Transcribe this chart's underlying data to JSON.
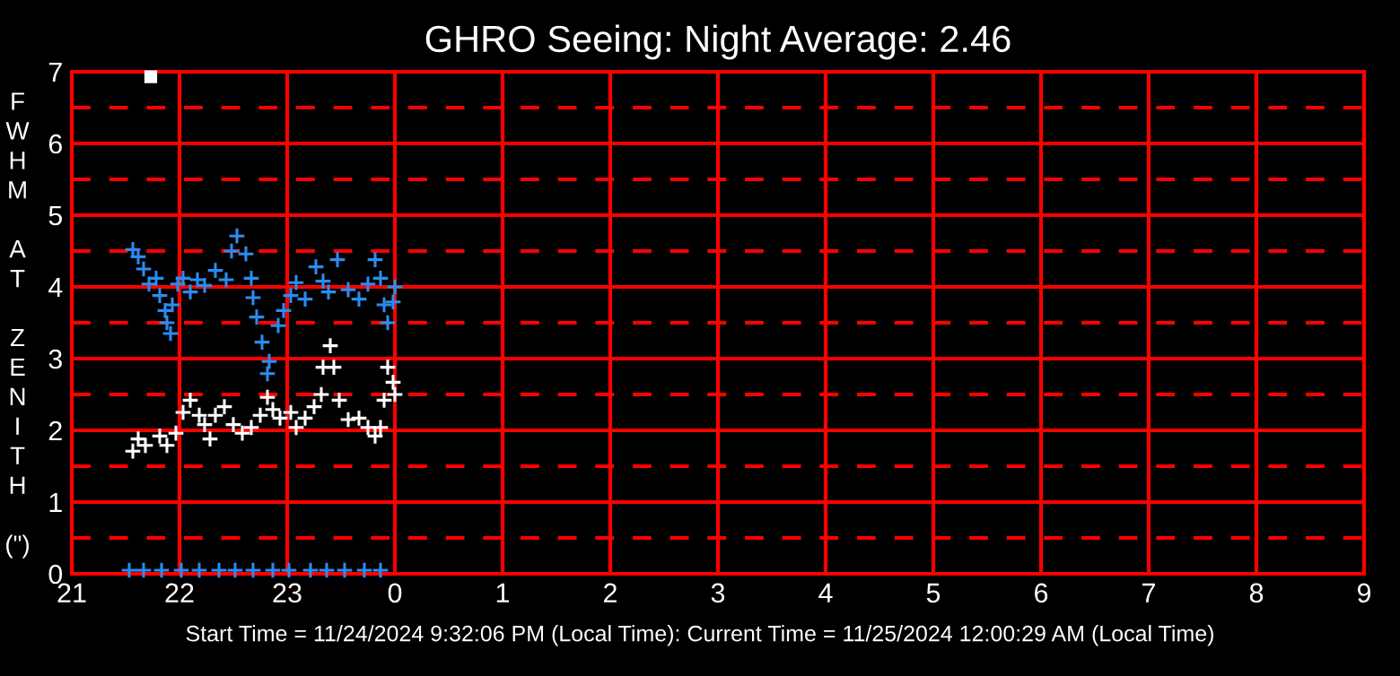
{
  "chart_data": {
    "type": "scatter",
    "title": "GHRO Seeing: Night Average: 2.46",
    "ylabel": "FWHM AT ZENITH (\")",
    "annotations": [
      "Start Time = 11/24/2024 9:32:06 PM (Local Time): Current Time = 11/25/2024 12:00:29 AM (Local Time)"
    ],
    "xlim": [
      "2024-11-24T21:00",
      "2024-11-25T09:00"
    ],
    "ylim": [
      0,
      7
    ],
    "xticks": [
      {
        "value": "2024-11-24T21:00",
        "label": "21"
      },
      {
        "value": "2024-11-24T22:00",
        "label": "22"
      },
      {
        "value": "2024-11-24T23:00",
        "label": "23"
      },
      {
        "value": "2024-11-25T00:00",
        "label": "0"
      },
      {
        "value": "2024-11-25T01:00",
        "label": "1"
      },
      {
        "value": "2024-11-25T02:00",
        "label": "2"
      },
      {
        "value": "2024-11-25T03:00",
        "label": "3"
      },
      {
        "value": "2024-11-25T04:00",
        "label": "4"
      },
      {
        "value": "2024-11-25T05:00",
        "label": "5"
      },
      {
        "value": "2024-11-25T06:00",
        "label": "6"
      },
      {
        "value": "2024-11-25T07:00",
        "label": "7"
      },
      {
        "value": "2024-11-25T08:00",
        "label": "8"
      },
      {
        "value": "2024-11-25T09:00",
        "label": "9"
      }
    ],
    "yticks": [
      0,
      1,
      2,
      3,
      4,
      5,
      6,
      7
    ],
    "grid": true,
    "marker": "cross",
    "ref_lines": [
      {
        "axis": "y",
        "value": 0.5,
        "color": "#ff0000",
        "line_style": "dashed"
      },
      {
        "axis": "y",
        "value": 1.5,
        "color": "#ff0000",
        "line_style": "dashed"
      },
      {
        "axis": "y",
        "value": 2.5,
        "color": "#ff0000",
        "line_style": "dashed"
      },
      {
        "axis": "y",
        "value": 3.5,
        "color": "#ff0000",
        "line_style": "dashed"
      },
      {
        "axis": "y",
        "value": 4.5,
        "color": "#ff0000",
        "line_style": "dashed"
      },
      {
        "axis": "y",
        "value": 5.5,
        "color": "#ff0000",
        "line_style": "dashed"
      },
      {
        "axis": "y",
        "value": 6.5,
        "color": "#ff0000",
        "line_style": "dashed"
      }
    ],
    "series": [
      {
        "color": "#2b8cf0",
        "x": [
          "2024-11-24T21:34",
          "2024-11-24T21:37",
          "2024-11-24T21:40",
          "2024-11-24T21:43",
          "2024-11-24T21:47",
          "2024-11-24T21:49",
          "2024-11-24T21:52",
          "2024-11-24T21:53",
          "2024-11-24T21:55",
          "2024-11-24T21:56",
          "2024-11-24T21:59",
          "2024-11-24T22:02",
          "2024-11-24T22:06",
          "2024-11-24T22:10",
          "2024-11-24T22:14",
          "2024-11-24T22:20",
          "2024-11-24T22:26",
          "2024-11-24T22:29",
          "2024-11-24T22:32",
          "2024-11-24T22:37",
          "2024-11-24T22:40",
          "2024-11-24T22:41",
          "2024-11-24T22:43",
          "2024-11-24T22:46",
          "2024-11-24T22:49",
          "2024-11-24T22:50",
          "2024-11-24T22:55",
          "2024-11-24T22:58",
          "2024-11-24T23:02",
          "2024-11-24T23:05",
          "2024-11-24T23:10",
          "2024-11-24T23:16",
          "2024-11-24T23:20",
          "2024-11-24T23:23",
          "2024-11-24T23:28",
          "2024-11-24T23:34",
          "2024-11-24T23:40",
          "2024-11-24T23:45",
          "2024-11-24T23:49",
          "2024-11-24T23:52",
          "2024-11-24T23:54",
          "2024-11-24T23:56",
          "2024-11-24T23:59",
          "2024-11-25T00:00"
        ],
        "values": [
          4.52,
          4.42,
          4.25,
          4.04,
          4.12,
          3.88,
          3.67,
          3.5,
          3.35,
          3.75,
          4.04,
          4.12,
          3.93,
          4.1,
          4.02,
          4.23,
          4.1,
          4.5,
          4.71,
          4.46,
          4.12,
          3.85,
          3.58,
          3.23,
          2.79,
          2.96,
          3.46,
          3.67,
          3.88,
          4.06,
          3.83,
          4.28,
          4.08,
          3.93,
          4.38,
          3.96,
          3.83,
          4.04,
          4.38,
          4.12,
          3.75,
          3.5,
          3.79,
          4.0
        ]
      },
      {
        "color": "#ffffff",
        "x": [
          "2024-11-24T21:34",
          "2024-11-24T21:37",
          "2024-11-24T21:41",
          "2024-11-24T21:49",
          "2024-11-24T21:53",
          "2024-11-24T21:58",
          "2024-11-24T22:02",
          "2024-11-24T22:06",
          "2024-11-24T22:11",
          "2024-11-24T22:14",
          "2024-11-24T22:17",
          "2024-11-24T22:20",
          "2024-11-24T22:25",
          "2024-11-24T22:30",
          "2024-11-24T22:35",
          "2024-11-24T22:40",
          "2024-11-24T22:45",
          "2024-11-24T22:49",
          "2024-11-24T22:52",
          "2024-11-24T22:56",
          "2024-11-24T23:02",
          "2024-11-24T23:05",
          "2024-11-24T23:10",
          "2024-11-24T23:15",
          "2024-11-24T23:19",
          "2024-11-24T23:20",
          "2024-11-24T23:24",
          "2024-11-24T23:26",
          "2024-11-24T23:29",
          "2024-11-24T23:34",
          "2024-11-24T23:40",
          "2024-11-24T23:45",
          "2024-11-24T23:49",
          "2024-11-24T23:52",
          "2024-11-24T23:54",
          "2024-11-24T23:56",
          "2024-11-24T23:59",
          "2024-11-25T00:00"
        ],
        "values": [
          1.71,
          1.88,
          1.79,
          1.92,
          1.79,
          1.96,
          2.25,
          2.42,
          2.21,
          2.08,
          1.88,
          2.21,
          2.33,
          2.08,
          1.96,
          2.04,
          2.21,
          2.46,
          2.29,
          2.17,
          2.25,
          2.04,
          2.17,
          2.33,
          2.5,
          2.88,
          3.18,
          2.88,
          2.42,
          2.15,
          2.17,
          2.04,
          1.92,
          2.04,
          2.42,
          2.88,
          2.67,
          2.5
        ]
      },
      {
        "color": "#2b8cf0",
        "x": [
          "2024-11-24T21:32",
          "2024-11-24T21:40",
          "2024-11-24T21:50",
          "2024-11-24T22:01",
          "2024-11-24T22:11",
          "2024-11-24T22:22",
          "2024-11-24T22:31",
          "2024-11-24T22:41",
          "2024-11-24T22:52",
          "2024-11-24T23:01",
          "2024-11-24T23:13",
          "2024-11-24T23:22",
          "2024-11-24T23:32",
          "2024-11-24T23:43",
          "2024-11-24T23:52"
        ],
        "values": [
          0.05,
          0.05,
          0.05,
          0.05,
          0.05,
          0.05,
          0.05,
          0.05,
          0.05,
          0.05,
          0.05,
          0.05,
          0.05,
          0.05,
          0.05
        ]
      },
      {
        "color": "#ffffff",
        "marker": "square",
        "x": [
          "2024-11-24T21:44"
        ],
        "values": [
          6.93
        ]
      }
    ]
  }
}
